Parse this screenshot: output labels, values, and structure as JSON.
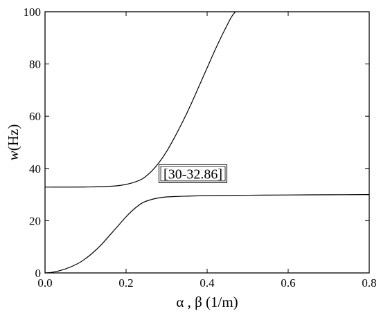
{
  "chart_data": {
    "type": "line",
    "title": "",
    "xlabel": "α , β (1/m)",
    "ylabel_italic": "w",
    "ylabel_unit": "(Hz)",
    "xlim": [
      0,
      0.8
    ],
    "ylim": [
      0,
      100
    ],
    "xticks": [
      "0.0",
      "0.2",
      "0.4",
      "0.6",
      "0.8"
    ],
    "yticks": [
      "0",
      "20",
      "40",
      "60",
      "80",
      "100"
    ],
    "xtick_values": [
      0,
      0.2,
      0.4,
      0.6,
      0.8
    ],
    "ytick_values": [
      0,
      20,
      40,
      60,
      80,
      100
    ],
    "grid": false,
    "annotation": "[30-32.86]",
    "annotation_at": [
      0.365,
      38
    ],
    "series": [
      {
        "x": [
          0,
          0.05,
          0.1,
          0.15,
          0.18,
          0.2,
          0.22,
          0.24,
          0.26,
          0.28,
          0.3,
          0.32,
          0.34,
          0.36,
          0.38,
          0.4,
          0.42,
          0.44,
          0.46,
          0.47
        ],
        "values": [
          32.86,
          32.87,
          32.9,
          33.1,
          33.4,
          33.9,
          34.7,
          36.0,
          38.5,
          42.0,
          46.5,
          52.0,
          58.0,
          64.5,
          71.5,
          78.5,
          85.5,
          92.0,
          98.0,
          100
        ]
      },
      {
        "x": [
          0,
          0.02,
          0.05,
          0.08,
          0.1,
          0.12,
          0.14,
          0.16,
          0.18,
          0.2,
          0.22,
          0.24,
          0.26,
          0.28,
          0.3,
          0.35,
          0.4,
          0.5,
          0.6,
          0.7,
          0.8
        ],
        "values": [
          0,
          0.3,
          1.5,
          3.5,
          5.5,
          8.0,
          11.0,
          14.5,
          18.0,
          21.5,
          24.5,
          26.8,
          28.0,
          28.7,
          29.1,
          29.4,
          29.6,
          29.75,
          29.85,
          29.92,
          30.0
        ]
      }
    ]
  }
}
